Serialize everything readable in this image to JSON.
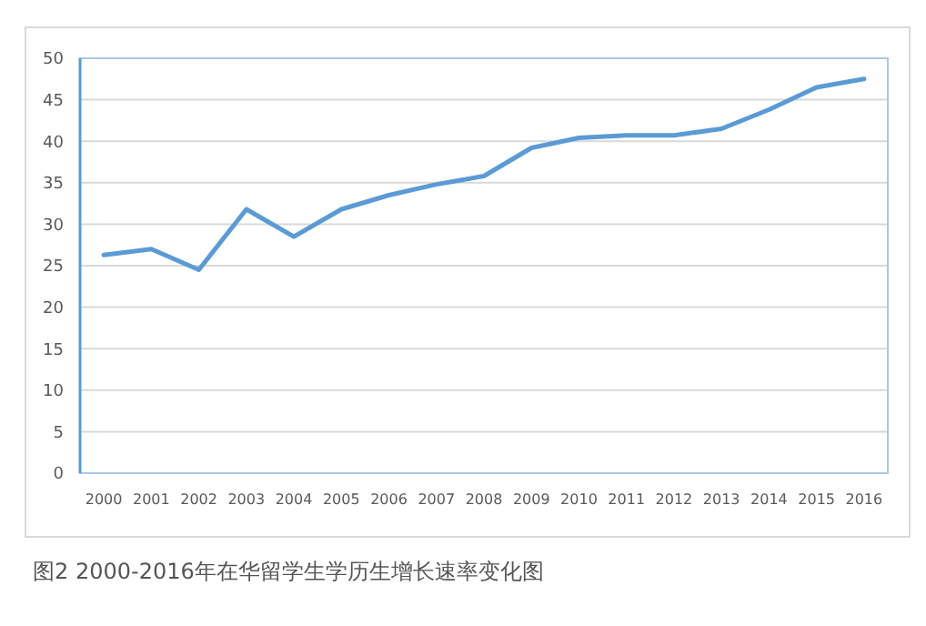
{
  "chart_data": {
    "type": "line",
    "categories": [
      "2000",
      "2001",
      "2002",
      "2003",
      "2004",
      "2005",
      "2006",
      "2007",
      "2008",
      "2009",
      "2010",
      "2011",
      "2012",
      "2013",
      "2014",
      "2015",
      "2016"
    ],
    "series": [
      {
        "color": "#5b9bd5",
        "values": [
          26.3,
          27.0,
          24.5,
          31.8,
          28.5,
          31.8,
          33.5,
          34.8,
          35.8,
          39.2,
          40.4,
          40.7,
          40.7,
          41.5,
          43.8,
          46.5,
          47.5
        ]
      }
    ],
    "ylim": [
      0,
      50
    ],
    "yticks": [
      0,
      5,
      10,
      15,
      20,
      25,
      30,
      35,
      40,
      45,
      50
    ],
    "grid": "y",
    "marker": "none",
    "line_style": "solid",
    "annotations": [
      "图2 2000-2016年在华留学生学历生增长速率变化图"
    ]
  }
}
